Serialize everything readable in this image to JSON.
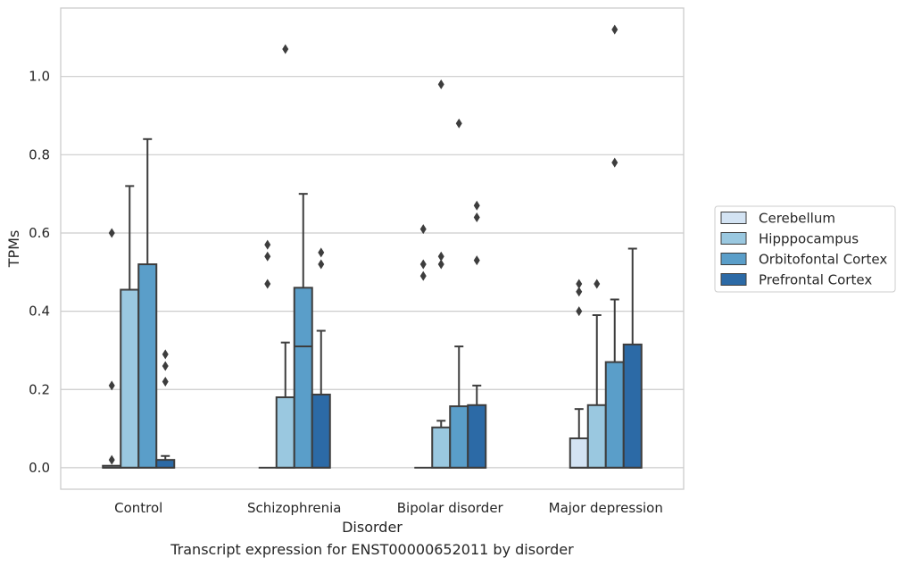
{
  "chart_data": {
    "type": "box",
    "title": "",
    "caption": "Transcript expression for ENST00000652011 by disorder",
    "xlabel": "Disorder",
    "ylabel": "TPMs",
    "ylim": [
      -0.055,
      1.175
    ],
    "yticks": [
      0.0,
      0.2,
      0.4,
      0.6,
      0.8,
      1.0
    ],
    "ytick_labels": [
      "0.0",
      "0.2",
      "0.4",
      "0.6",
      "0.8",
      "1.0"
    ],
    "grid": "horizontal",
    "legend_position": "right",
    "categories": [
      "Control",
      "Schizophrenia",
      "Bipolar disorder",
      "Major depression"
    ],
    "series": [
      {
        "name": "Cerebellum",
        "color": "#d3e3f3",
        "boxes": [
          {
            "q1": 0.0,
            "median": 0.0,
            "q3": 0.005,
            "whisker_low": 0.0,
            "whisker_high": 0.005,
            "outliers": [
              0.02,
              0.21,
              0.6
            ]
          },
          {
            "q1": 0.0,
            "median": 0.0,
            "q3": 0.0,
            "whisker_low": 0.0,
            "whisker_high": 0.0,
            "outliers": [
              0.47,
              0.54,
              0.57
            ]
          },
          {
            "q1": 0.0,
            "median": 0.0,
            "q3": 0.0,
            "whisker_low": 0.0,
            "whisker_high": 0.0,
            "outliers": [
              0.49,
              0.52,
              0.61
            ]
          },
          {
            "q1": 0.0,
            "median": 0.0,
            "q3": 0.075,
            "whisker_low": 0.0,
            "whisker_high": 0.15,
            "outliers": [
              0.4,
              0.45,
              0.47
            ]
          }
        ]
      },
      {
        "name": "Hipppocampus",
        "color": "#9ac8e0",
        "boxes": [
          {
            "q1": 0.0,
            "median": 0.0,
            "q3": 0.455,
            "whisker_low": 0.0,
            "whisker_high": 0.72,
            "outliers": []
          },
          {
            "q1": 0.0,
            "median": 0.0,
            "q3": 0.18,
            "whisker_low": 0.0,
            "whisker_high": 0.32,
            "outliers": [
              1.07
            ]
          },
          {
            "q1": 0.0,
            "median": 0.0,
            "q3": 0.103,
            "whisker_low": 0.0,
            "whisker_high": 0.12,
            "outliers": [
              0.52,
              0.54,
              0.98
            ]
          },
          {
            "q1": 0.0,
            "median": 0.0,
            "q3": 0.16,
            "whisker_low": 0.0,
            "whisker_high": 0.39,
            "outliers": [
              0.47
            ]
          }
        ]
      },
      {
        "name": "Orbitofontal Cortex",
        "color": "#5a9ec9",
        "boxes": [
          {
            "q1": 0.0,
            "median": 0.0,
            "q3": 0.52,
            "whisker_low": 0.0,
            "whisker_high": 0.84,
            "outliers": []
          },
          {
            "q1": 0.0,
            "median": 0.31,
            "q3": 0.46,
            "whisker_low": 0.0,
            "whisker_high": 0.7,
            "outliers": []
          },
          {
            "q1": 0.0,
            "median": 0.0,
            "q3": 0.157,
            "whisker_low": 0.0,
            "whisker_high": 0.31,
            "outliers": [
              0.88
            ]
          },
          {
            "q1": 0.0,
            "median": 0.0,
            "q3": 0.27,
            "whisker_low": 0.0,
            "whisker_high": 0.43,
            "outliers": [
              0.78,
              1.12
            ]
          }
        ]
      },
      {
        "name": "Prefrontal Cortex",
        "color": "#2c6aa6",
        "boxes": [
          {
            "q1": 0.0,
            "median": 0.0,
            "q3": 0.02,
            "whisker_low": 0.0,
            "whisker_high": 0.03,
            "outliers": [
              0.22,
              0.26,
              0.29
            ]
          },
          {
            "q1": 0.0,
            "median": 0.0,
            "q3": 0.187,
            "whisker_low": 0.0,
            "whisker_high": 0.35,
            "outliers": [
              0.52,
              0.55
            ]
          },
          {
            "q1": 0.0,
            "median": 0.0,
            "q3": 0.16,
            "whisker_low": 0.0,
            "whisker_high": 0.21,
            "outliers": [
              0.53,
              0.64,
              0.67
            ]
          },
          {
            "q1": 0.0,
            "median": 0.0,
            "q3": 0.315,
            "whisker_low": 0.0,
            "whisker_high": 0.56,
            "outliers": []
          }
        ]
      }
    ]
  }
}
